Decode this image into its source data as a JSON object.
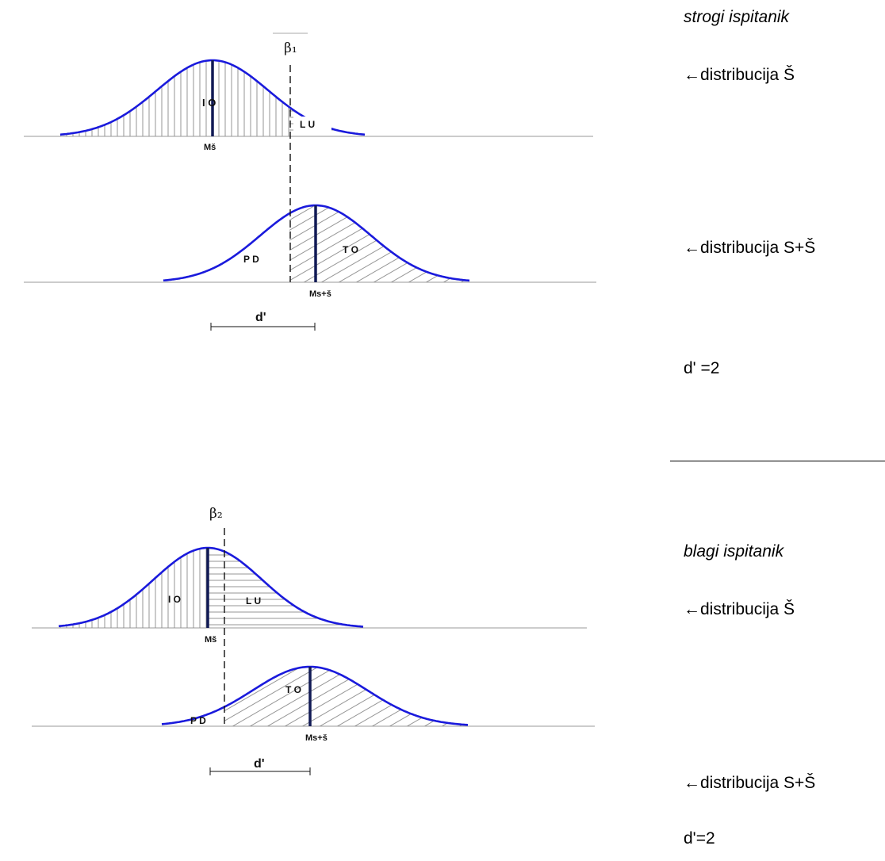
{
  "colors": {
    "curve": "#1a1adc",
    "mean_line": "#111a55",
    "hatch": "#8a8a8a",
    "text": "#000000"
  },
  "panel_top": {
    "criterion_label": "β₁",
    "noise_mean_label": "Mš",
    "signal_mean_label": "Ms+š",
    "region_io": "I O",
    "region_lu": "L U",
    "region_pd": "P D",
    "region_to": "T O",
    "dprime_label": "d'",
    "side_title": "strogi ispitanik",
    "side_noise": "←distribucija Š",
    "side_signal": "←distribucija S+Š",
    "side_dprime": "d' =2"
  },
  "panel_bottom": {
    "criterion_label": "β₂",
    "noise_mean_label": "Mš",
    "signal_mean_label": "Ms+š",
    "region_io": "I O",
    "region_lu": "L U",
    "region_pd": "P D",
    "region_to": "T O",
    "dprime_label": "d'",
    "side_title": "blagi ispitanik",
    "side_noise": "←distribucija Š",
    "side_signal": "←distribucija S+Š",
    "side_dprime": "d'=2"
  }
}
